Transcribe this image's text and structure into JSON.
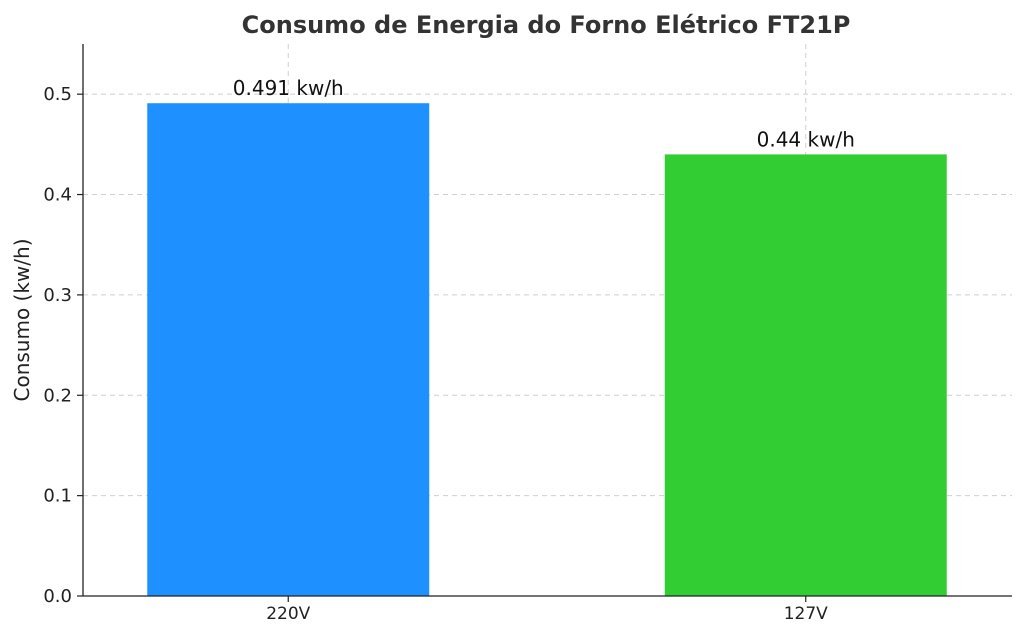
{
  "chart_data": {
    "type": "bar",
    "title": "Consumo de Energia do Forno Elétrico FT21P",
    "xlabel": "",
    "ylabel": "Consumo (kw/h)",
    "categories": [
      "220V",
      "127V"
    ],
    "values": [
      0.491,
      0.44
    ],
    "data_labels": [
      "0.491 kw/h",
      "0.44 kw/h"
    ],
    "colors": [
      "#1e90ff",
      "#32cd32"
    ],
    "ylim": [
      0,
      0.55
    ],
    "yticks": [
      0.0,
      0.1,
      0.2,
      0.3,
      0.4,
      0.5
    ],
    "ytick_labels": [
      "0.0",
      "0.1",
      "0.2",
      "0.3",
      "0.4",
      "0.5"
    ],
    "grid": true,
    "legend": "none"
  }
}
